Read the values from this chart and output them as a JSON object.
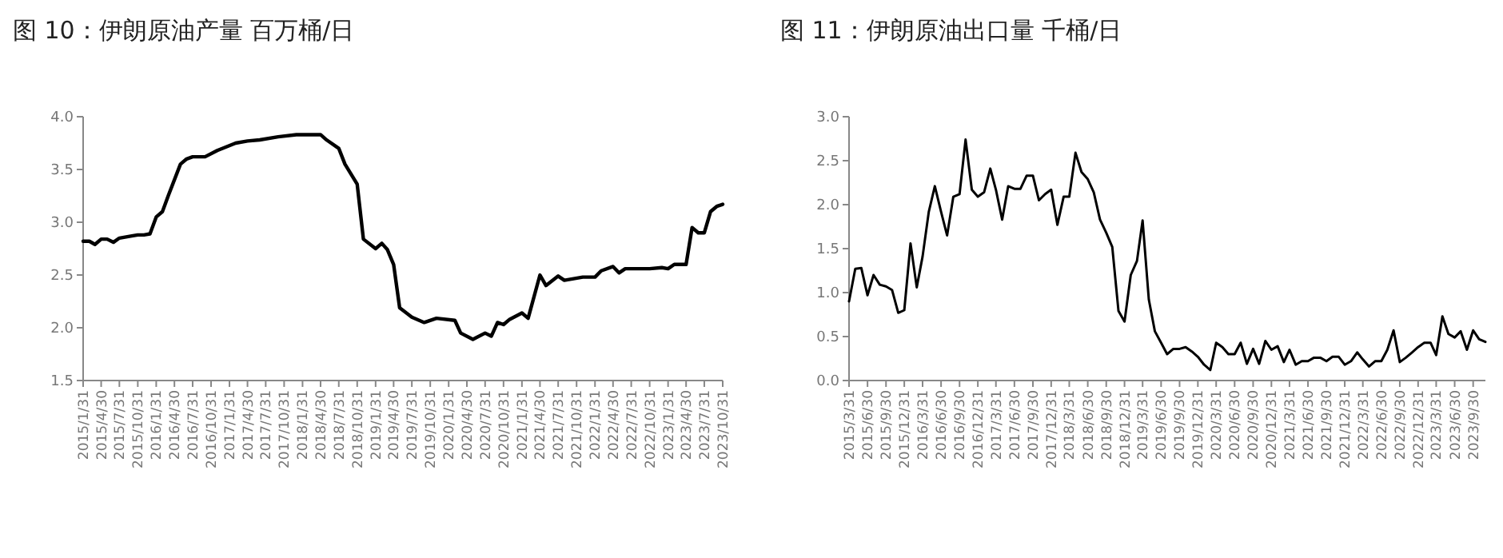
{
  "chart_data": [
    {
      "type": "line",
      "title": "图 10：伊朗原油产量 百万桶/日",
      "xlim": [
        "2015-01",
        "2023-10"
      ],
      "ylim": [
        1.5,
        4.0
      ],
      "yticks": [
        {
          "value": 1.5,
          "label": "1.5"
        },
        {
          "value": 2,
          "label": "2.0"
        },
        {
          "value": 2.5,
          "label": "2.5"
        },
        {
          "value": 3,
          "label": "3.0"
        },
        {
          "value": 3.5,
          "label": "3.5"
        },
        {
          "value": 4,
          "label": "4.0"
        }
      ],
      "xticks": [
        {
          "value": "2015-01",
          "label": "2015/1/31"
        },
        {
          "value": "2015-04",
          "label": "2015/4/30"
        },
        {
          "value": "2015-07",
          "label": "2015/7/31"
        },
        {
          "value": "2015-10",
          "label": "2015/10/31"
        },
        {
          "value": "2016-01",
          "label": "2016/1/31"
        },
        {
          "value": "2016-04",
          "label": "2016/4/30"
        },
        {
          "value": "2016-07",
          "label": "2016/7/31"
        },
        {
          "value": "2016-10",
          "label": "2016/10/31"
        },
        {
          "value": "2017-01",
          "label": "2017/1/31"
        },
        {
          "value": "2017-04",
          "label": "2017/4/30"
        },
        {
          "value": "2017-07",
          "label": "2017/7/31"
        },
        {
          "value": "2017-10",
          "label": "2017/10/31"
        },
        {
          "value": "2018-01",
          "label": "2018/1/31"
        },
        {
          "value": "2018-04",
          "label": "2018/4/30"
        },
        {
          "value": "2018-07",
          "label": "2018/7/31"
        },
        {
          "value": "2018-10",
          "label": "2018/10/31"
        },
        {
          "value": "2019-01",
          "label": "2019/1/31"
        },
        {
          "value": "2019-04",
          "label": "2019/4/30"
        },
        {
          "value": "2019-07",
          "label": "2019/7/31"
        },
        {
          "value": "2019-10",
          "label": "2019/10/31"
        },
        {
          "value": "2020-01",
          "label": "2020/1/31"
        },
        {
          "value": "2020-04",
          "label": "2020/4/30"
        },
        {
          "value": "2020-07",
          "label": "2020/7/31"
        },
        {
          "value": "2020-10",
          "label": "2020/10/31"
        },
        {
          "value": "2021-01",
          "label": "2021/1/31"
        },
        {
          "value": "2021-04",
          "label": "2021/4/30"
        },
        {
          "value": "2021-07",
          "label": "2021/7/31"
        },
        {
          "value": "2021-10",
          "label": "2021/10/31"
        },
        {
          "value": "2022-01",
          "label": "2022/1/31"
        },
        {
          "value": "2022-04",
          "label": "2022/4/30"
        },
        {
          "value": "2022-07",
          "label": "2022/7/31"
        },
        {
          "value": "2022-10",
          "label": "2022/10/31"
        },
        {
          "value": "2023-01",
          "label": "2023/1/31"
        },
        {
          "value": "2023-04",
          "label": "2023/4/30"
        },
        {
          "value": "2023-07",
          "label": "2023/7/31"
        },
        {
          "value": "2023-10",
          "label": "2023/10/31"
        }
      ],
      "series": [
        {
          "color": "#000000",
          "x": [
            "2015-01",
            "2015-02",
            "2015-03",
            "2015-04",
            "2015-05",
            "2015-06",
            "2015-07",
            "2015-09",
            "2015-10",
            "2015-11",
            "2015-12",
            "2016-01",
            "2016-02",
            "2016-03",
            "2016-05",
            "2016-06",
            "2016-07",
            "2016-09",
            "2016-11",
            "2017-02",
            "2017-04",
            "2017-06",
            "2017-09",
            "2017-12",
            "2018-04",
            "2018-05",
            "2018-07",
            "2018-08",
            "2018-10",
            "2018-11",
            "2019-01",
            "2019-02",
            "2019-03",
            "2019-04",
            "2019-05",
            "2019-07",
            "2019-09",
            "2019-11",
            "2020-02",
            "2020-03",
            "2020-05",
            "2020-07",
            "2020-08",
            "2020-09",
            "2020-10",
            "2020-11",
            "2021-01",
            "2021-02",
            "2021-04",
            "2021-05",
            "2021-07",
            "2021-08",
            "2021-11",
            "2022-01",
            "2022-02",
            "2022-04",
            "2022-05",
            "2022-06",
            "2022-10",
            "2022-12",
            "2023-01",
            "2023-02",
            "2023-04",
            "2023-05",
            "2023-06",
            "2023-07",
            "2023-08",
            "2023-09",
            "2023-10"
          ],
          "values": [
            2.82,
            2.82,
            2.79,
            2.84,
            2.84,
            2.81,
            2.85,
            2.87,
            2.88,
            2.88,
            2.89,
            3.05,
            3.1,
            3.25,
            3.55,
            3.6,
            3.62,
            3.62,
            3.68,
            3.75,
            3.77,
            3.78,
            3.81,
            3.83,
            3.83,
            3.78,
            3.7,
            3.55,
            3.36,
            2.84,
            2.75,
            2.8,
            2.74,
            2.6,
            2.19,
            2.1,
            2.05,
            2.09,
            2.07,
            1.95,
            1.89,
            1.95,
            1.92,
            2.05,
            2.03,
            2.08,
            2.14,
            2.09,
            2.5,
            2.4,
            2.49,
            2.45,
            2.48,
            2.48,
            2.54,
            2.58,
            2.52,
            2.56,
            2.56,
            2.57,
            2.56,
            2.6,
            2.6,
            2.95,
            2.9,
            2.9,
            3.1,
            3.15,
            3.17
          ]
        }
      ]
    },
    {
      "type": "line",
      "title": "图 11：伊朗原油出口量 千桶/日",
      "xlim": [
        "2015-03",
        "2023-11"
      ],
      "ylim": [
        0,
        3.0
      ],
      "yticks": [
        {
          "value": 0,
          "label": "0.0"
        },
        {
          "value": 0.5,
          "label": "0.5"
        },
        {
          "value": 1,
          "label": "1.0"
        },
        {
          "value": 1.5,
          "label": "1.5"
        },
        {
          "value": 2,
          "label": "2.0"
        },
        {
          "value": 2.5,
          "label": "2.5"
        },
        {
          "value": 3,
          "label": "3.0"
        }
      ],
      "xticks": [
        {
          "value": "2015-03",
          "label": "2015/3/31"
        },
        {
          "value": "2015-06",
          "label": "2015/6/30"
        },
        {
          "value": "2015-09",
          "label": "2015/9/30"
        },
        {
          "value": "2015-12",
          "label": "2015/12/31"
        },
        {
          "value": "2016-03",
          "label": "2016/3/31"
        },
        {
          "value": "2016-06",
          "label": "2016/6/30"
        },
        {
          "value": "2016-09",
          "label": "2016/9/30"
        },
        {
          "value": "2016-12",
          "label": "2016/12/31"
        },
        {
          "value": "2017-03",
          "label": "2017/3/31"
        },
        {
          "value": "2017-06",
          "label": "2017/6/30"
        },
        {
          "value": "2017-09",
          "label": "2017/9/30"
        },
        {
          "value": "2017-12",
          "label": "2017/12/31"
        },
        {
          "value": "2018-03",
          "label": "2018/3/31"
        },
        {
          "value": "2018-06",
          "label": "2018/6/30"
        },
        {
          "value": "2018-09",
          "label": "2018/9/30"
        },
        {
          "value": "2018-12",
          "label": "2018/12/31"
        },
        {
          "value": "2019-03",
          "label": "2019/3/31"
        },
        {
          "value": "2019-06",
          "label": "2019/6/30"
        },
        {
          "value": "2019-09",
          "label": "2019/9/30"
        },
        {
          "value": "2019-12",
          "label": "2019/12/31"
        },
        {
          "value": "2020-03",
          "label": "2020/3/31"
        },
        {
          "value": "2020-06",
          "label": "2020/6/30"
        },
        {
          "value": "2020-09",
          "label": "2020/9/30"
        },
        {
          "value": "2020-12",
          "label": "2020/12/31"
        },
        {
          "value": "2021-03",
          "label": "2021/3/31"
        },
        {
          "value": "2021-06",
          "label": "2021/6/30"
        },
        {
          "value": "2021-09",
          "label": "2021/9/30"
        },
        {
          "value": "2021-12",
          "label": "2021/12/31"
        },
        {
          "value": "2022-03",
          "label": "2022/3/31"
        },
        {
          "value": "2022-06",
          "label": "2022/6/30"
        },
        {
          "value": "2022-09",
          "label": "2022/9/30"
        },
        {
          "value": "2022-12",
          "label": "2022/12/31"
        },
        {
          "value": "2023-03",
          "label": "2023/3/31"
        },
        {
          "value": "2023-06",
          "label": "2023/6/30"
        },
        {
          "value": "2023-09",
          "label": "2023/9/30"
        }
      ],
      "series": [
        {
          "color": "#000000",
          "x": [
            "2015-03",
            "2015-04",
            "2015-05",
            "2015-06",
            "2015-07",
            "2015-08",
            "2015-09",
            "2015-10",
            "2015-11",
            "2015-12",
            "2016-01",
            "2016-02",
            "2016-03",
            "2016-04",
            "2016-05",
            "2016-06",
            "2016-07",
            "2016-08",
            "2016-09",
            "2016-10",
            "2016-11",
            "2016-12",
            "2017-01",
            "2017-02",
            "2017-03",
            "2017-04",
            "2017-05",
            "2017-06",
            "2017-07",
            "2017-08",
            "2017-09",
            "2017-10",
            "2017-11",
            "2017-12",
            "2018-01",
            "2018-02",
            "2018-03",
            "2018-04",
            "2018-05",
            "2018-06",
            "2018-07",
            "2018-08",
            "2018-09",
            "2018-10",
            "2018-11",
            "2018-12",
            "2019-01",
            "2019-02",
            "2019-03",
            "2019-04",
            "2019-05",
            "2019-06",
            "2019-07",
            "2019-08",
            "2019-09",
            "2019-10",
            "2019-11",
            "2019-12",
            "2020-01",
            "2020-02",
            "2020-03",
            "2020-04",
            "2020-05",
            "2020-06",
            "2020-07",
            "2020-08",
            "2020-09",
            "2020-10",
            "2020-11",
            "2020-12",
            "2021-01",
            "2021-02",
            "2021-03",
            "2021-04",
            "2021-05",
            "2021-06",
            "2021-07",
            "2021-08",
            "2021-09",
            "2021-10",
            "2021-11",
            "2021-12",
            "2022-01",
            "2022-02",
            "2022-03",
            "2022-04",
            "2022-05",
            "2022-06",
            "2022-07",
            "2022-08",
            "2022-09",
            "2022-10",
            "2022-11",
            "2022-12",
            "2023-01",
            "2023-02",
            "2023-03",
            "2023-04",
            "2023-05",
            "2023-06",
            "2023-07",
            "2023-08",
            "2023-09",
            "2023-10",
            "2023-11"
          ],
          "values": [
            0.9,
            1.27,
            1.28,
            0.97,
            1.2,
            1.09,
            1.07,
            1.03,
            0.77,
            0.8,
            1.56,
            1.06,
            1.41,
            1.92,
            2.21,
            1.92,
            1.65,
            2.09,
            2.12,
            2.74,
            2.17,
            2.09,
            2.14,
            2.41,
            2.17,
            1.83,
            2.21,
            2.18,
            2.18,
            2.33,
            2.33,
            2.05,
            2.12,
            2.17,
            1.77,
            2.09,
            2.09,
            2.59,
            2.37,
            2.29,
            2.14,
            1.83,
            1.68,
            1.52,
            0.79,
            0.67,
            1.2,
            1.36,
            1.82,
            0.92,
            0.56,
            0.43,
            0.3,
            0.36,
            0.36,
            0.38,
            0.33,
            0.27,
            0.18,
            0.12,
            0.43,
            0.38,
            0.3,
            0.3,
            0.43,
            0.19,
            0.36,
            0.19,
            0.45,
            0.35,
            0.39,
            0.21,
            0.35,
            0.18,
            0.22,
            0.22,
            0.26,
            0.26,
            0.22,
            0.27,
            0.27,
            0.18,
            0.22,
            0.32,
            0.24,
            0.16,
            0.22,
            0.22,
            0.35,
            0.57,
            0.21,
            0.26,
            0.32,
            0.38,
            0.43,
            0.43,
            0.29,
            0.73,
            0.53,
            0.49,
            0.56,
            0.35,
            0.57,
            0.47,
            0.44
          ]
        }
      ]
    }
  ]
}
